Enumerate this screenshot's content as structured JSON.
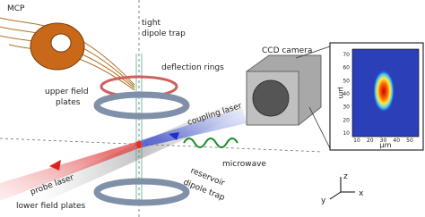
{
  "labels": {
    "mcp": "MCP",
    "tight_trap": [
      "tight",
      "dipole trap"
    ],
    "deflection": "deflection rings",
    "ccd": "CCD camera",
    "upper_plates": [
      "upper field",
      "plates"
    ],
    "coupling": "coupling laser",
    "microwave": "microwave",
    "probe": "probe laser",
    "reservoir": [
      "reservoir",
      "dipole trap"
    ],
    "lower_plates": "lower field plates",
    "axis_x": "x",
    "axis_y": "y",
    "axis_z": "z"
  },
  "inset": {
    "xlabel": "μm",
    "ylabel": "μm",
    "xticks": [
      10,
      20,
      30,
      40,
      50
    ],
    "yticks": [
      10,
      20,
      30,
      40,
      50,
      60,
      70
    ]
  }
}
